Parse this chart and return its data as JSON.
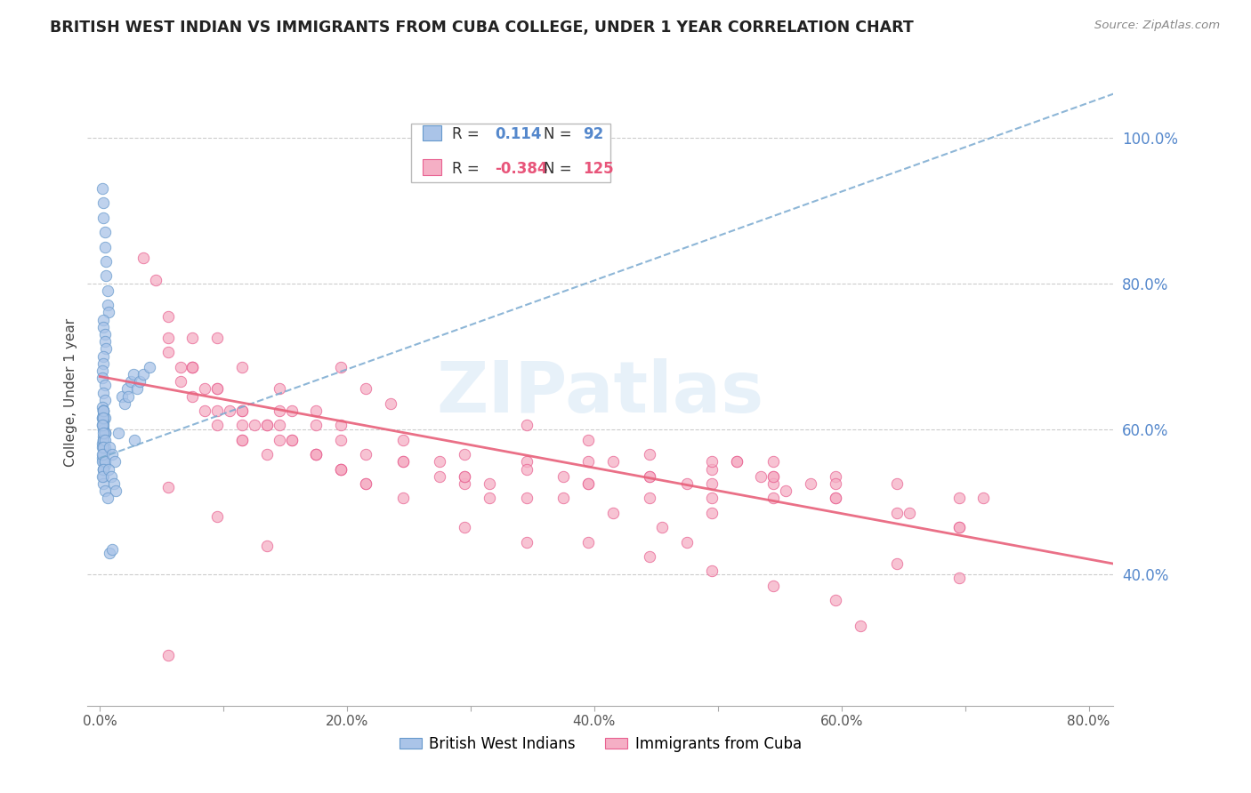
{
  "title": "BRITISH WEST INDIAN VS IMMIGRANTS FROM CUBA COLLEGE, UNDER 1 YEAR CORRELATION CHART",
  "source": "Source: ZipAtlas.com",
  "ylabel": "College, Under 1 year",
  "x_tick_positions": [
    0.0,
    0.1,
    0.2,
    0.3,
    0.4,
    0.5,
    0.6,
    0.7,
    0.8
  ],
  "x_tick_labels": [
    "0.0%",
    "",
    "20.0%",
    "",
    "40.0%",
    "",
    "60.0%",
    "",
    "80.0%"
  ],
  "y_ticks_right": [
    0.4,
    0.6,
    0.8,
    1.0
  ],
  "y_tick_labels_right": [
    "40.0%",
    "60.0%",
    "80.0%",
    "100.0%"
  ],
  "xlim": [
    -0.01,
    0.82
  ],
  "ylim": [
    0.22,
    1.08
  ],
  "blue_R": 0.114,
  "blue_N": 92,
  "pink_R": -0.384,
  "pink_N": 125,
  "blue_color": "#aac4e8",
  "pink_color": "#f5afc5",
  "blue_edge_color": "#6699cc",
  "pink_edge_color": "#e86090",
  "blue_line_color": "#7aaad0",
  "pink_line_color": "#e8607a",
  "watermark_color": "#d0e4f5",
  "blue_trend_x0": 0.0,
  "blue_trend_y0": 0.56,
  "blue_trend_x1": 0.82,
  "blue_trend_y1": 1.06,
  "pink_trend_x0": 0.0,
  "pink_trend_y0": 0.672,
  "pink_trend_x1": 0.82,
  "pink_trend_y1": 0.415,
  "blue_x": [
    0.002,
    0.003,
    0.003,
    0.004,
    0.004,
    0.005,
    0.005,
    0.006,
    0.006,
    0.007,
    0.003,
    0.003,
    0.004,
    0.004,
    0.005,
    0.003,
    0.003,
    0.002,
    0.002,
    0.004,
    0.003,
    0.004,
    0.002,
    0.003,
    0.003,
    0.004,
    0.003,
    0.002,
    0.003,
    0.004,
    0.003,
    0.003,
    0.002,
    0.003,
    0.004,
    0.003,
    0.002,
    0.003,
    0.004,
    0.003,
    0.003,
    0.002,
    0.003,
    0.004,
    0.003,
    0.004,
    0.003,
    0.002,
    0.003,
    0.003,
    0.003,
    0.004,
    0.003,
    0.002,
    0.003,
    0.004,
    0.003,
    0.002,
    0.003,
    0.004,
    0.003,
    0.003,
    0.002,
    0.003,
    0.004,
    0.003,
    0.002,
    0.004,
    0.003,
    0.002,
    0.018,
    0.022,
    0.025,
    0.027,
    0.03,
    0.032,
    0.035,
    0.04,
    0.02,
    0.023,
    0.015,
    0.028,
    0.008,
    0.01,
    0.012,
    0.007,
    0.009,
    0.011,
    0.013,
    0.006,
    0.008,
    0.01
  ],
  "blue_y": [
    0.93,
    0.91,
    0.89,
    0.87,
    0.85,
    0.83,
    0.81,
    0.79,
    0.77,
    0.76,
    0.75,
    0.74,
    0.73,
    0.72,
    0.71,
    0.7,
    0.69,
    0.68,
    0.67,
    0.66,
    0.65,
    0.64,
    0.63,
    0.625,
    0.62,
    0.615,
    0.61,
    0.605,
    0.6,
    0.595,
    0.59,
    0.585,
    0.58,
    0.575,
    0.57,
    0.565,
    0.56,
    0.555,
    0.55,
    0.545,
    0.625,
    0.615,
    0.6,
    0.595,
    0.585,
    0.575,
    0.565,
    0.555,
    0.545,
    0.535,
    0.525,
    0.515,
    0.625,
    0.615,
    0.605,
    0.595,
    0.585,
    0.575,
    0.565,
    0.555,
    0.625,
    0.615,
    0.605,
    0.595,
    0.585,
    0.575,
    0.565,
    0.555,
    0.545,
    0.535,
    0.645,
    0.655,
    0.665,
    0.675,
    0.655,
    0.665,
    0.675,
    0.685,
    0.635,
    0.645,
    0.595,
    0.585,
    0.575,
    0.565,
    0.555,
    0.545,
    0.535,
    0.525,
    0.515,
    0.505,
    0.43,
    0.435
  ],
  "pink_x": [
    0.035,
    0.055,
    0.075,
    0.045,
    0.065,
    0.095,
    0.115,
    0.085,
    0.105,
    0.125,
    0.145,
    0.065,
    0.075,
    0.085,
    0.095,
    0.115,
    0.135,
    0.155,
    0.175,
    0.195,
    0.215,
    0.235,
    0.075,
    0.095,
    0.115,
    0.135,
    0.155,
    0.175,
    0.195,
    0.055,
    0.075,
    0.095,
    0.115,
    0.135,
    0.155,
    0.175,
    0.195,
    0.215,
    0.245,
    0.275,
    0.295,
    0.315,
    0.345,
    0.375,
    0.395,
    0.415,
    0.445,
    0.475,
    0.495,
    0.515,
    0.545,
    0.575,
    0.595,
    0.145,
    0.195,
    0.245,
    0.295,
    0.345,
    0.395,
    0.445,
    0.495,
    0.545,
    0.595,
    0.645,
    0.695,
    0.655,
    0.695,
    0.715,
    0.055,
    0.075,
    0.095,
    0.115,
    0.145,
    0.175,
    0.195,
    0.215,
    0.245,
    0.275,
    0.295,
    0.315,
    0.345,
    0.395,
    0.445,
    0.495,
    0.545,
    0.345,
    0.395,
    0.445,
    0.495,
    0.545,
    0.595,
    0.245,
    0.295,
    0.495,
    0.545,
    0.595,
    0.645,
    0.695,
    0.395,
    0.445,
    0.295,
    0.345,
    0.195,
    0.215,
    0.175,
    0.145,
    0.115,
    0.495,
    0.545,
    0.595,
    0.645,
    0.695,
    0.515,
    0.535,
    0.555,
    0.375,
    0.415,
    0.455,
    0.475,
    0.055,
    0.095,
    0.135,
    0.055,
    0.615
  ],
  "pink_y": [
    0.835,
    0.725,
    0.685,
    0.805,
    0.685,
    0.725,
    0.685,
    0.655,
    0.625,
    0.605,
    0.655,
    0.665,
    0.645,
    0.625,
    0.605,
    0.585,
    0.565,
    0.625,
    0.605,
    0.685,
    0.655,
    0.635,
    0.725,
    0.655,
    0.625,
    0.605,
    0.585,
    0.565,
    0.545,
    0.705,
    0.685,
    0.655,
    0.625,
    0.605,
    0.585,
    0.565,
    0.545,
    0.525,
    0.555,
    0.535,
    0.525,
    0.505,
    0.555,
    0.535,
    0.525,
    0.555,
    0.535,
    0.525,
    0.505,
    0.555,
    0.535,
    0.525,
    0.505,
    0.625,
    0.605,
    0.585,
    0.565,
    0.545,
    0.525,
    0.505,
    0.485,
    0.555,
    0.535,
    0.525,
    0.505,
    0.485,
    0.465,
    0.505,
    0.755,
    0.685,
    0.625,
    0.605,
    0.585,
    0.565,
    0.545,
    0.525,
    0.505,
    0.555,
    0.535,
    0.525,
    0.505,
    0.555,
    0.535,
    0.525,
    0.505,
    0.605,
    0.585,
    0.565,
    0.545,
    0.525,
    0.505,
    0.555,
    0.535,
    0.555,
    0.535,
    0.525,
    0.485,
    0.465,
    0.445,
    0.425,
    0.465,
    0.445,
    0.585,
    0.565,
    0.625,
    0.605,
    0.585,
    0.405,
    0.385,
    0.365,
    0.415,
    0.395,
    0.555,
    0.535,
    0.515,
    0.505,
    0.485,
    0.465,
    0.445,
    0.52,
    0.48,
    0.44,
    0.29,
    0.33
  ]
}
